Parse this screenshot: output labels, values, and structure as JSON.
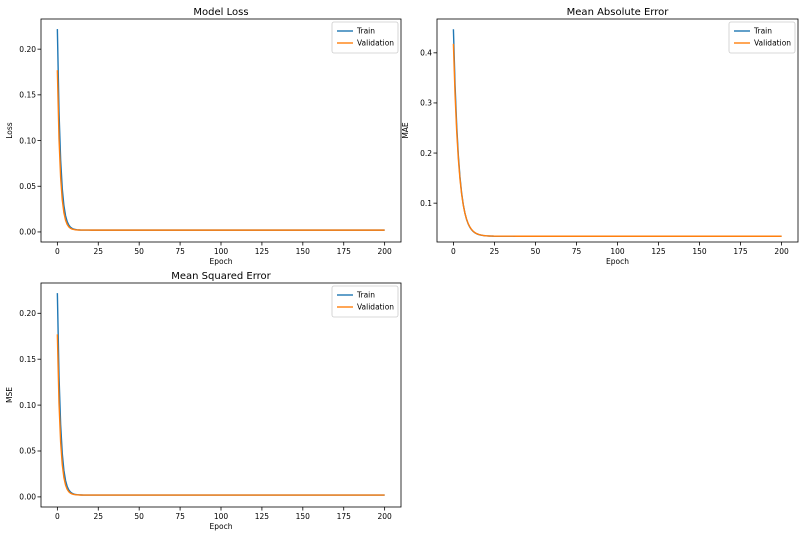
{
  "colors": {
    "train": "#1f77b4",
    "validation": "#ff7f0e",
    "axes": "#000000",
    "background": "#ffffff"
  },
  "chart_data": [
    {
      "type": "line",
      "title": "Model Loss",
      "xlabel": "Epoch",
      "ylabel": "Loss",
      "xlim": [
        -10,
        210
      ],
      "ylim": [
        -0.011,
        0.233
      ],
      "xticks": [
        0,
        25,
        50,
        75,
        100,
        125,
        150,
        175,
        200
      ],
      "yticks": [
        0.0,
        0.05,
        0.1,
        0.15,
        0.2
      ],
      "ytick_labels": [
        "0.00",
        "0.05",
        "0.10",
        "0.15",
        "0.20"
      ],
      "legend": "top-right",
      "grid": false,
      "series": [
        {
          "name": "Train",
          "start": 0.222,
          "floor": 0.002,
          "tau": 1.9
        },
        {
          "name": "Validation",
          "start": 0.177,
          "floor": 0.002,
          "tau": 1.8
        }
      ]
    },
    {
      "type": "line",
      "title": "Mean Absolute Error",
      "xlabel": "Epoch",
      "ylabel": "MAE",
      "xlim": [
        -10,
        210
      ],
      "ylim": [
        0.0225,
        0.4675
      ],
      "xticks": [
        0,
        25,
        50,
        75,
        100,
        125,
        150,
        175,
        200
      ],
      "yticks": [
        0.1,
        0.2,
        0.3,
        0.4
      ],
      "ytick_labels": [
        "0.1",
        "0.2",
        "0.3",
        "0.4"
      ],
      "legend": "top-right",
      "grid": false,
      "series": [
        {
          "name": "Train",
          "start": 0.447,
          "floor": 0.034,
          "tau": 3.2
        },
        {
          "name": "Validation",
          "start": 0.418,
          "floor": 0.034,
          "tau": 3.3
        }
      ]
    },
    {
      "type": "line",
      "title": "Mean Squared Error",
      "xlabel": "Epoch",
      "ylabel": "MSE",
      "xlim": [
        -10,
        210
      ],
      "ylim": [
        -0.011,
        0.233
      ],
      "xticks": [
        0,
        25,
        50,
        75,
        100,
        125,
        150,
        175,
        200
      ],
      "yticks": [
        0.0,
        0.05,
        0.1,
        0.15,
        0.2
      ],
      "ytick_labels": [
        "0.00",
        "0.05",
        "0.10",
        "0.15",
        "0.20"
      ],
      "legend": "top-right",
      "grid": false,
      "series": [
        {
          "name": "Train",
          "start": 0.222,
          "floor": 0.002,
          "tau": 1.9
        },
        {
          "name": "Validation",
          "start": 0.177,
          "floor": 0.002,
          "tau": 1.8
        }
      ]
    }
  ]
}
